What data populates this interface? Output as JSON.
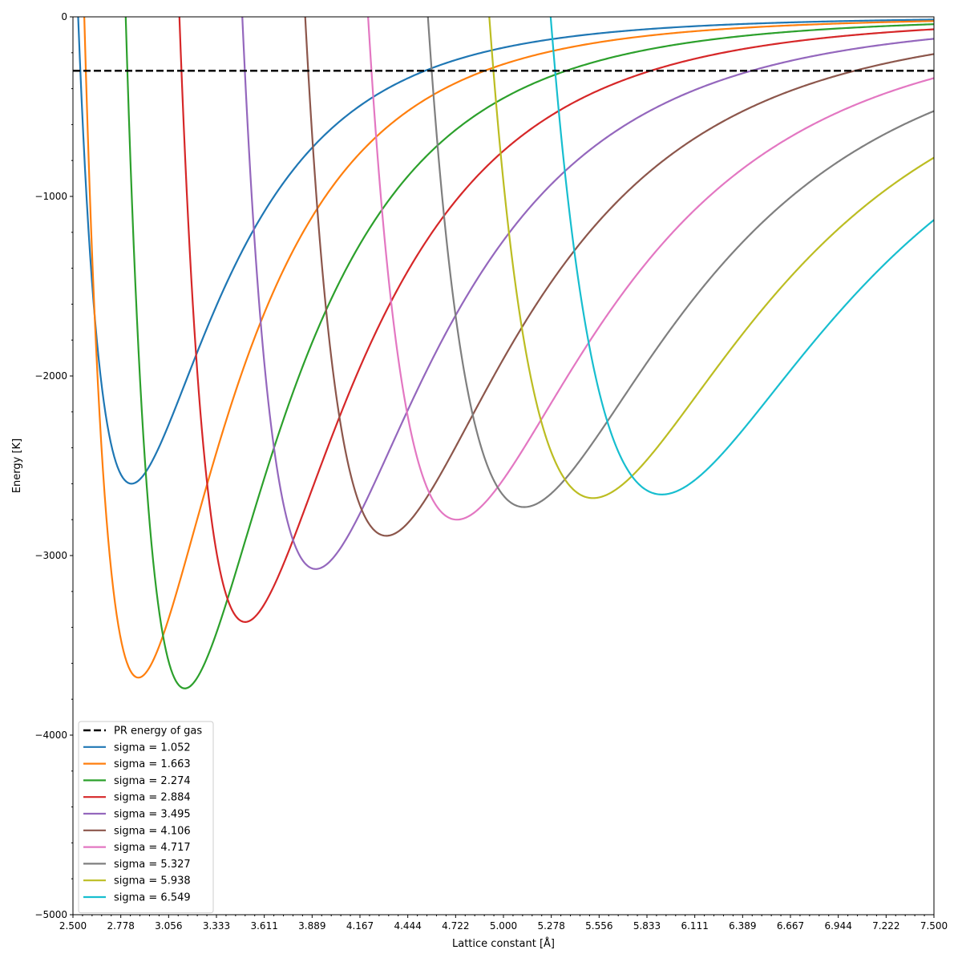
{
  "chart_data": {
    "type": "line",
    "title": "",
    "xlabel": "Lattice constant [Å]",
    "ylabel": "Energy [K]",
    "xlim": [
      2.5,
      7.5
    ],
    "ylim": [
      -5000,
      0
    ],
    "x_ticks": [
      "2.500",
      "2.778",
      "3.056",
      "3.333",
      "3.611",
      "3.889",
      "4.167",
      "4.444",
      "4.722",
      "5.000",
      "5.278",
      "5.556",
      "5.833",
      "6.111",
      "6.389",
      "6.667",
      "6.944",
      "7.222",
      "7.500"
    ],
    "y_ticks": [
      "0",
      "−1000",
      "−2000",
      "−3000",
      "−4000",
      "−5000"
    ],
    "grid": false,
    "legend_position": "bottom-left",
    "reference_line": {
      "name": "PR energy of gas",
      "y": -300,
      "style": "dashed",
      "color": "#000000"
    },
    "series": [
      {
        "name": "sigma = 1.052",
        "color": "#1f77b4",
        "min_x": 2.84,
        "min_y": -2600,
        "x_zero": 2.533
      },
      {
        "name": "sigma = 1.663",
        "color": "#ff7f0e",
        "min_x": 2.88,
        "min_y": -3680,
        "x_zero": 2.573
      },
      {
        "name": "sigma = 2.274",
        "color": "#2ca02c",
        "min_x": 3.15,
        "min_y": -3740,
        "x_zero": 2.805
      },
      {
        "name": "sigma = 2.884",
        "color": "#d62728",
        "min_x": 3.5,
        "min_y": -3370,
        "x_zero": 3.15
      },
      {
        "name": "sigma = 3.495",
        "color": "#9467bd",
        "min_x": 3.91,
        "min_y": -3075,
        "x_zero": 3.51
      },
      {
        "name": "sigma = 4.106",
        "color": "#8c564b",
        "min_x": 4.32,
        "min_y": -2890,
        "x_zero": 3.87
      },
      {
        "name": "sigma = 4.717",
        "color": "#e377c2",
        "min_x": 4.73,
        "min_y": -2800,
        "x_zero": 4.23
      },
      {
        "name": "sigma = 5.327",
        "color": "#7f7f7f",
        "min_x": 5.12,
        "min_y": -2730,
        "x_zero": 4.59
      },
      {
        "name": "sigma = 5.938",
        "color": "#bcbd22",
        "min_x": 5.52,
        "min_y": -2680,
        "x_zero": 4.95
      },
      {
        "name": "sigma = 6.549",
        "color": "#17becf",
        "min_x": 5.92,
        "min_y": -2660,
        "x_zero": 5.3
      }
    ]
  }
}
